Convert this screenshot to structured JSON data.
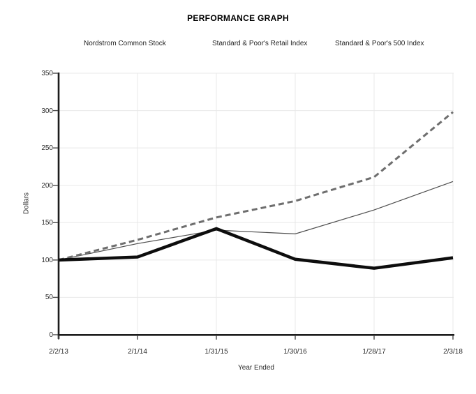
{
  "title": "PERFORMANCE GRAPH",
  "legend": {
    "items": [
      {
        "label": "Nordstrom Common Stock",
        "style": "thick-solid",
        "color": "#0d0d0d"
      },
      {
        "label": "Standard & Poor's Retail Index",
        "style": "dashed",
        "color": "#6e6e6e"
      },
      {
        "label": "Standard & Poor's 500 Index",
        "style": "thin-solid",
        "color": "#4d4d4d"
      }
    ]
  },
  "chart_data": {
    "type": "line",
    "title": "PERFORMANCE GRAPH",
    "categories": [
      "2/2/13",
      "2/1/14",
      "1/31/15",
      "1/30/16",
      "1/28/17",
      "2/3/18"
    ],
    "series": [
      {
        "name": "Nordstrom Common Stock",
        "style": "thick-solid",
        "color": "#0d0d0d",
        "values": [
          100,
          104,
          142,
          101,
          89,
          103
        ]
      },
      {
        "name": "Standard & Poor's Retail Index",
        "style": "dashed",
        "color": "#6e6e6e",
        "values": [
          100,
          127,
          157,
          179,
          211,
          298
        ]
      },
      {
        "name": "Standard & Poor's 500 Index",
        "style": "thin-solid",
        "color": "#4d4d4d",
        "values": [
          100,
          122,
          140,
          135,
          167,
          205
        ]
      }
    ],
    "xlabel": "Year Ended",
    "ylabel": "Dollars",
    "ylim": [
      0,
      350
    ],
    "y_ticks": [
      0,
      50,
      100,
      150,
      200,
      250,
      300,
      350
    ],
    "grid": true,
    "legend_position": "top"
  },
  "colors": {
    "background": "#ffffff",
    "grid": "#e8e8e8",
    "axis": "#1c1c1c",
    "tick": "#4a4a4a",
    "text": "#2b2b2b"
  }
}
